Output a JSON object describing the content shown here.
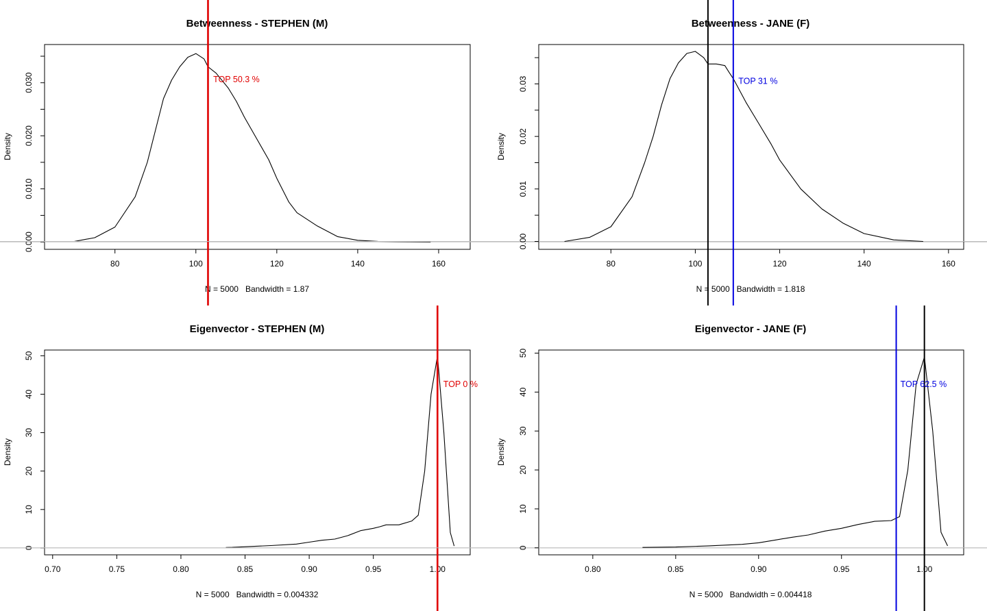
{
  "chart_data": [
    {
      "type": "line",
      "title": "Betweenness - STEPHEN (M)",
      "xlabel": "N = 5000   Bandwidth = 1.87",
      "ylabel": "Density",
      "xlim": [
        62.6,
        167.8
      ],
      "ylim": [
        -0.0014,
        0.0372
      ],
      "xticks": [
        80,
        100,
        120,
        140,
        160
      ],
      "xtick_labels": [
        "80",
        "100",
        "120",
        "140",
        "160"
      ],
      "yticks": [
        0.0,
        0.01,
        0.02,
        0.03
      ],
      "ytick_labels": [
        "0.000",
        "0.010",
        "0.020",
        "0.030"
      ],
      "minor_yticks": [
        0.005,
        0.015,
        0.025,
        0.035
      ],
      "x": [
        70,
        75,
        80,
        85,
        88,
        90,
        92,
        94,
        96,
        98,
        100,
        102,
        103,
        105,
        108,
        110,
        112,
        115,
        118,
        120,
        123,
        125,
        130,
        135,
        140,
        145,
        150,
        158
      ],
      "y": [
        0.0001,
        0.0008,
        0.0028,
        0.0085,
        0.015,
        0.021,
        0.027,
        0.0305,
        0.033,
        0.0348,
        0.0355,
        0.0345,
        0.033,
        0.0318,
        0.029,
        0.0265,
        0.0235,
        0.0195,
        0.0155,
        0.012,
        0.0075,
        0.0055,
        0.003,
        0.001,
        0.0003,
        0.0001,
        5e-05,
        0.0
      ],
      "vlines": [
        {
          "x": 103.0,
          "color": "#000000"
        },
        {
          "x": 103.0,
          "color": "#e00000"
        }
      ],
      "annotation": {
        "text": "TOP 50.3 %",
        "x": 104.3,
        "y": 0.0306,
        "color": "#e00000"
      }
    },
    {
      "type": "line",
      "title": "Betweenness - JANE (F)",
      "xlabel": "N = 5000   Bandwidth = 1.818",
      "ylabel": "Density",
      "xlim": [
        62.9,
        163.6
      ],
      "ylim": [
        -0.0015,
        0.0375
      ],
      "xticks": [
        80,
        100,
        120,
        140,
        160
      ],
      "xtick_labels": [
        "80",
        "100",
        "120",
        "140",
        "160"
      ],
      "yticks": [
        0.0,
        0.01,
        0.02,
        0.03
      ],
      "ytick_labels": [
        "0.00",
        "0.01",
        "0.02",
        "0.03"
      ],
      "minor_yticks": [
        0.005,
        0.015,
        0.025,
        0.035
      ],
      "x": [
        69,
        75,
        80,
        85,
        88,
        90,
        92,
        94,
        96,
        98,
        100,
        102,
        103,
        105,
        107,
        108,
        109,
        110,
        112,
        115,
        118,
        120,
        125,
        130,
        135,
        140,
        147,
        154
      ],
      "y": [
        0.0,
        0.0008,
        0.0028,
        0.0085,
        0.015,
        0.02,
        0.026,
        0.031,
        0.034,
        0.0358,
        0.0362,
        0.035,
        0.0338,
        0.0338,
        0.0335,
        0.0322,
        0.031,
        0.0295,
        0.0265,
        0.0225,
        0.0185,
        0.0155,
        0.01,
        0.0062,
        0.0035,
        0.0015,
        0.0003,
        0.0
      ],
      "vlines": [
        {
          "x": 103.0,
          "color": "#000000"
        },
        {
          "x": 109.0,
          "color": "#0000e0"
        }
      ],
      "annotation": {
        "text": "TOP 31 %",
        "x": 110.2,
        "y": 0.0305,
        "color": "#0000e0"
      }
    },
    {
      "type": "line",
      "title": "Eigenvector - STEPHEN (M)",
      "xlabel": "N = 5000   Bandwidth = 0.004332",
      "ylabel": "Density",
      "xlim": [
        0.6937,
        1.0255
      ],
      "ylim": [
        -1.8,
        51.5
      ],
      "xticks": [
        0.7,
        0.75,
        0.8,
        0.85,
        0.9,
        0.95,
        1.0
      ],
      "xtick_labels": [
        "0.70",
        "0.75",
        "0.80",
        "0.85",
        "0.90",
        "0.95",
        "1.00"
      ],
      "yticks": [
        0,
        10,
        20,
        30,
        40,
        50
      ],
      "ytick_labels": [
        "0",
        "10",
        "20",
        "30",
        "40",
        "50"
      ],
      "minor_yticks": [],
      "x": [
        0.835,
        0.84,
        0.85,
        0.87,
        0.89,
        0.9,
        0.91,
        0.92,
        0.93,
        0.94,
        0.95,
        0.955,
        0.96,
        0.97,
        0.98,
        0.985,
        0.99,
        0.995,
        1.0,
        1.005,
        1.01,
        1.013
      ],
      "y": [
        0.1,
        0.15,
        0.3,
        0.6,
        1.0,
        1.5,
        2.0,
        2.3,
        3.2,
        4.5,
        5.1,
        5.5,
        6.0,
        6.0,
        7.0,
        8.5,
        20.0,
        40.0,
        50.0,
        30.0,
        4.0,
        0.5
      ],
      "vlines": [
        {
          "x": 1.0,
          "color": "#e00000"
        }
      ],
      "annotation": {
        "text": "TOP 0 %",
        "x": 1.0045,
        "y": 42.6,
        "color": "#e00000"
      }
    },
    {
      "type": "line",
      "title": "Eigenvector - JANE (F)",
      "xlabel": "N = 5000   Bandwidth = 0.004418",
      "ylabel": "Density",
      "xlim": [
        0.7674,
        1.0237
      ],
      "ylim": [
        -1.8,
        50.8
      ],
      "xticks": [
        0.8,
        0.85,
        0.9,
        0.95,
        1.0
      ],
      "xtick_labels": [
        "0.80",
        "0.85",
        "0.90",
        "0.95",
        "1.00"
      ],
      "yticks": [
        0,
        10,
        20,
        30,
        40,
        50
      ],
      "ytick_labels": [
        "0",
        "10",
        "20",
        "30",
        "40",
        "50"
      ],
      "minor_yticks": [],
      "x": [
        0.83,
        0.85,
        0.87,
        0.89,
        0.9,
        0.91,
        0.92,
        0.93,
        0.94,
        0.95,
        0.96,
        0.97,
        0.98,
        0.985,
        0.99,
        0.995,
        1.0,
        1.005,
        1.01,
        1.014
      ],
      "y": [
        0.1,
        0.2,
        0.5,
        0.9,
        1.3,
        2.0,
        2.7,
        3.3,
        4.3,
        5.0,
        6.0,
        6.8,
        7.0,
        8.0,
        20.0,
        42.0,
        49.0,
        30.0,
        4.0,
        0.5
      ],
      "vlines": [
        {
          "x": 0.983,
          "color": "#0000e0"
        },
        {
          "x": 1.0,
          "color": "#000000"
        }
      ],
      "annotation": {
        "text": "TOP 62.5 %",
        "x": 0.9855,
        "y": 42.0,
        "color": "#0000e0"
      }
    }
  ]
}
